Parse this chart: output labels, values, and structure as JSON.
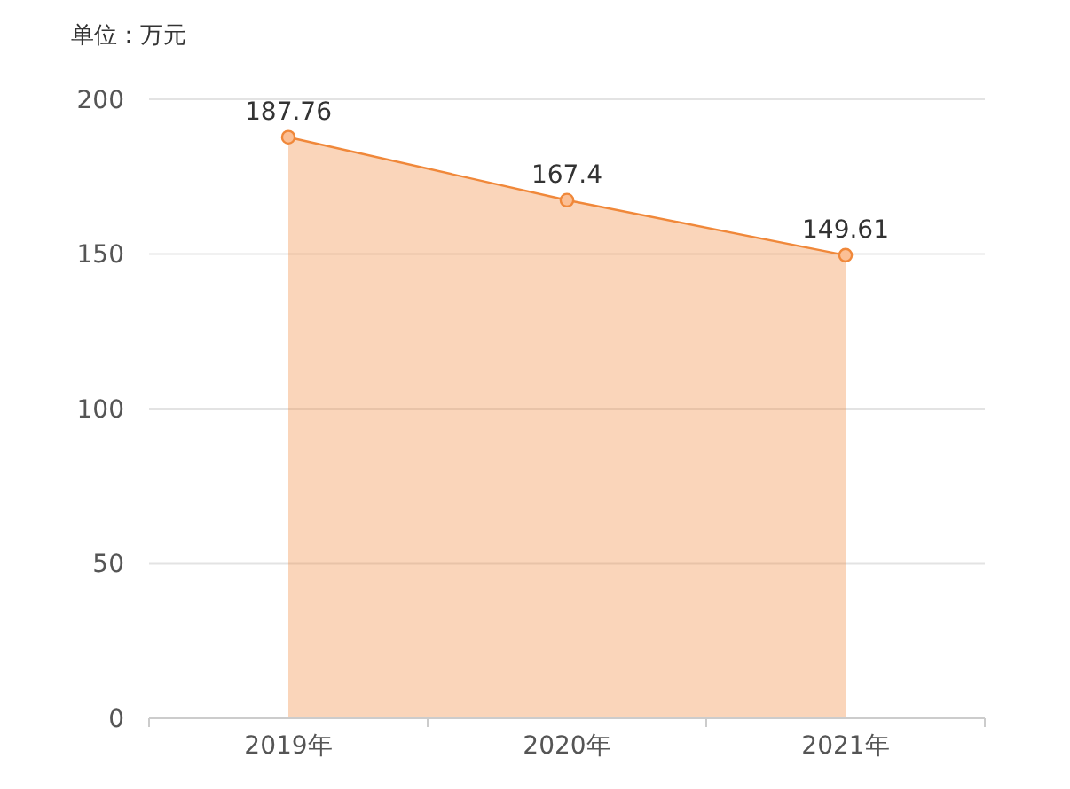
{
  "chart_data": {
    "type": "area",
    "title": "单位：万元",
    "categories": [
      "2019年",
      "2020年",
      "2021年"
    ],
    "series": [
      {
        "color": "#f0883a",
        "values": [
          187.76,
          167.4,
          149.61
        ]
      }
    ],
    "ylim": [
      0,
      200
    ],
    "yticks": [
      0,
      50,
      100,
      150,
      200
    ],
    "grid": "y",
    "marker": "circle",
    "data_labels": true
  }
}
